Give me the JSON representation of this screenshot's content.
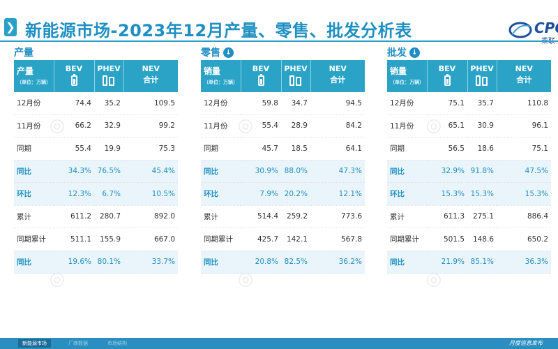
{
  "title": "新能源市场-2023年12月产量、零售、批发分析表",
  "logo": {
    "text": "CPCA",
    "sub": "乘联"
  },
  "sections": [
    {
      "label": "产量",
      "has_arrow": false,
      "header": {
        "first": "产量",
        "unit": "（单位：万辆）",
        "bev": "BEV",
        "phev": "PHEV",
        "nev_1": "NEV",
        "nev_2": "合计"
      },
      "rows": [
        {
          "label": "12月份",
          "bev": "74.4",
          "phev": "35.2",
          "nev": "109.5",
          "hl": false
        },
        {
          "label": "11月份",
          "bev": "66.2",
          "phev": "32.9",
          "nev": "99.2",
          "hl": false
        },
        {
          "label": "同期",
          "bev": "55.4",
          "phev": "19.9",
          "nev": "75.3",
          "hl": false
        },
        {
          "label": "同比",
          "bev": "34.3%",
          "phev": "76.5%",
          "nev": "45.4%",
          "hl": true
        },
        {
          "label": "环比",
          "bev": "12.3%",
          "phev": "6.7%",
          "nev": "10.5%",
          "hl": true
        },
        {
          "label": "累计",
          "bev": "611.2",
          "phev": "280.7",
          "nev": "892.0",
          "hl": false
        },
        {
          "label": "同期累计",
          "bev": "511.1",
          "phev": "155.9",
          "nev": "667.0",
          "hl": false
        },
        {
          "label": "同比",
          "bev": "19.6%",
          "phev": "80.1%",
          "nev": "33.7%",
          "hl": true
        }
      ]
    },
    {
      "label": "零售",
      "has_arrow": true,
      "header": {
        "first": "销量",
        "unit": "（单位：万辆）",
        "bev": "BEV",
        "phev": "PHEV",
        "nev_1": "NEV",
        "nev_2": "合计"
      },
      "rows": [
        {
          "label": "12月份",
          "bev": "59.8",
          "phev": "34.7",
          "nev": "94.5",
          "hl": false
        },
        {
          "label": "11月份",
          "bev": "55.4",
          "phev": "28.9",
          "nev": "84.2",
          "hl": false
        },
        {
          "label": "同期",
          "bev": "45.7",
          "phev": "18.5",
          "nev": "64.1",
          "hl": false
        },
        {
          "label": "同比",
          "bev": "30.9%",
          "phev": "88.0%",
          "nev": "47.3%",
          "hl": true
        },
        {
          "label": "环比",
          "bev": "7.9%",
          "phev": "20.2%",
          "nev": "12.1%",
          "hl": true
        },
        {
          "label": "累计",
          "bev": "514.4",
          "phev": "259.2",
          "nev": "773.6",
          "hl": false
        },
        {
          "label": "同期累计",
          "bev": "425.7",
          "phev": "142.1",
          "nev": "567.8",
          "hl": false
        },
        {
          "label": "同比",
          "bev": "20.8%",
          "phev": "82.5%",
          "nev": "36.2%",
          "hl": true
        }
      ]
    },
    {
      "label": "批发",
      "has_arrow": true,
      "header": {
        "first": "销量",
        "unit": "（单位：万辆）",
        "bev": "BEV",
        "phev": "PHEV",
        "nev_1": "NEV",
        "nev_2": "合计"
      },
      "rows": [
        {
          "label": "12月份",
          "bev": "75.1",
          "phev": "35.7",
          "nev": "110.8",
          "hl": false
        },
        {
          "label": "11月份",
          "bev": "65.1",
          "phev": "30.9",
          "nev": "96.1",
          "hl": false
        },
        {
          "label": "同期",
          "bev": "56.5",
          "phev": "18.6",
          "nev": "75.1",
          "hl": false
        },
        {
          "label": "同比",
          "bev": "32.9%",
          "phev": "91.8%",
          "nev": "47.5%",
          "hl": true
        },
        {
          "label": "环比",
          "bev": "15.3%",
          "phev": "15.3%",
          "nev": "15.3%",
          "hl": true
        },
        {
          "label": "累计",
          "bev": "611.3",
          "phev": "275.1",
          "nev": "886.4",
          "hl": false
        },
        {
          "label": "同期累计",
          "bev": "501.5",
          "phev": "148.6",
          "nev": "650.2",
          "hl": false
        },
        {
          "label": "同比",
          "bev": "21.9%",
          "phev": "85.1%",
          "nev": "36.3%",
          "hl": true
        }
      ]
    }
  ],
  "footer": {
    "tabs": [
      "新能源市场",
      "厂商数据",
      "市场结构"
    ],
    "right": "月度信息发布"
  },
  "colors": {
    "accent": "#2aa3c6",
    "title": "#1e8fc2",
    "highlight_bg": "#eaf5fb"
  }
}
